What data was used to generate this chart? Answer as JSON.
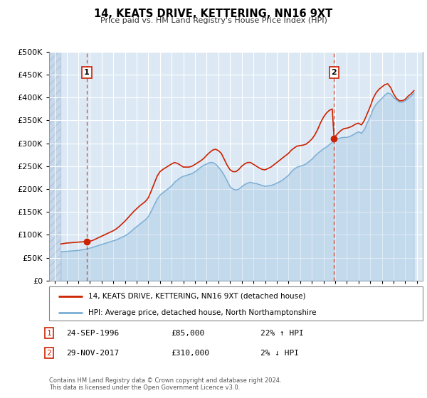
{
  "title": "14, KEATS DRIVE, KETTERING, NN16 9XT",
  "subtitle": "Price paid vs. HM Land Registry's House Price Index (HPI)",
  "legend_line1": "14, KEATS DRIVE, KETTERING, NN16 9XT (detached house)",
  "legend_line2": "HPI: Average price, detached house, North Northamptonshire",
  "annotation_text": "Contains HM Land Registry data © Crown copyright and database right 2024.\nThis data is licensed under the Open Government Licence v3.0.",
  "sale1_label": "1",
  "sale1_date": "24-SEP-1996",
  "sale1_price": "£85,000",
  "sale1_hpi": "22% ↑ HPI",
  "sale1_year": 1996.73,
  "sale1_value": 85000,
  "sale2_label": "2",
  "sale2_date": "29-NOV-2017",
  "sale2_price": "£310,000",
  "sale2_hpi": "2% ↓ HPI",
  "sale2_year": 2017.91,
  "sale2_value": 310000,
  "hpi_color": "#7aadd4",
  "sale_color": "#cc2200",
  "vline_color": "#dd3311",
  "plot_bg_color": "#dce9f5",
  "hatch_color": "#c8d8e8",
  "ylim": [
    0,
    500000
  ],
  "xlim_start": 1993.5,
  "xlim_end": 2025.5,
  "data_start": 1994.5,
  "yticks": [
    0,
    50000,
    100000,
    150000,
    200000,
    250000,
    300000,
    350000,
    400000,
    450000,
    500000
  ],
  "xticks": [
    1994,
    1995,
    1996,
    1997,
    1998,
    1999,
    2000,
    2001,
    2002,
    2003,
    2004,
    2005,
    2006,
    2007,
    2008,
    2009,
    2010,
    2011,
    2012,
    2013,
    2014,
    2015,
    2016,
    2017,
    2018,
    2019,
    2020,
    2021,
    2022,
    2023,
    2024,
    2025
  ],
  "hpi_data": [
    [
      1994.5,
      63000
    ],
    [
      1994.75,
      63500
    ],
    [
      1995.0,
      64000
    ],
    [
      1995.25,
      64500
    ],
    [
      1995.5,
      65000
    ],
    [
      1995.75,
      65500
    ],
    [
      1996.0,
      66000
    ],
    [
      1996.25,
      67000
    ],
    [
      1996.5,
      68000
    ],
    [
      1996.75,
      69500
    ],
    [
      1997.0,
      71000
    ],
    [
      1997.25,
      73000
    ],
    [
      1997.5,
      75000
    ],
    [
      1997.75,
      77000
    ],
    [
      1998.0,
      79000
    ],
    [
      1998.25,
      81000
    ],
    [
      1998.5,
      83000
    ],
    [
      1998.75,
      85000
    ],
    [
      1999.0,
      87000
    ],
    [
      1999.25,
      89000
    ],
    [
      1999.5,
      92000
    ],
    [
      1999.75,
      95000
    ],
    [
      2000.0,
      98000
    ],
    [
      2000.25,
      102000
    ],
    [
      2000.5,
      107000
    ],
    [
      2000.75,
      113000
    ],
    [
      2001.0,
      118000
    ],
    [
      2001.25,
      123000
    ],
    [
      2001.5,
      128000
    ],
    [
      2001.75,
      133000
    ],
    [
      2002.0,
      140000
    ],
    [
      2002.25,
      152000
    ],
    [
      2002.5,
      165000
    ],
    [
      2002.75,
      178000
    ],
    [
      2003.0,
      187000
    ],
    [
      2003.25,
      192000
    ],
    [
      2003.5,
      197000
    ],
    [
      2003.75,
      202000
    ],
    [
      2004.0,
      207000
    ],
    [
      2004.25,
      215000
    ],
    [
      2004.5,
      220000
    ],
    [
      2004.75,
      225000
    ],
    [
      2005.0,
      228000
    ],
    [
      2005.25,
      230000
    ],
    [
      2005.5,
      232000
    ],
    [
      2005.75,
      234000
    ],
    [
      2006.0,
      238000
    ],
    [
      2006.25,
      243000
    ],
    [
      2006.5,
      248000
    ],
    [
      2006.75,
      252000
    ],
    [
      2007.0,
      255000
    ],
    [
      2007.25,
      258000
    ],
    [
      2007.5,
      258000
    ],
    [
      2007.75,
      255000
    ],
    [
      2008.0,
      248000
    ],
    [
      2008.25,
      240000
    ],
    [
      2008.5,
      230000
    ],
    [
      2008.75,
      218000
    ],
    [
      2009.0,
      205000
    ],
    [
      2009.25,
      200000
    ],
    [
      2009.5,
      198000
    ],
    [
      2009.75,
      200000
    ],
    [
      2010.0,
      205000
    ],
    [
      2010.25,
      210000
    ],
    [
      2010.5,
      213000
    ],
    [
      2010.75,
      215000
    ],
    [
      2011.0,
      213000
    ],
    [
      2011.25,
      212000
    ],
    [
      2011.5,
      210000
    ],
    [
      2011.75,
      208000
    ],
    [
      2012.0,
      206000
    ],
    [
      2012.25,
      207000
    ],
    [
      2012.5,
      208000
    ],
    [
      2012.75,
      210000
    ],
    [
      2013.0,
      213000
    ],
    [
      2013.25,
      216000
    ],
    [
      2013.5,
      220000
    ],
    [
      2013.75,
      225000
    ],
    [
      2014.0,
      230000
    ],
    [
      2014.25,
      238000
    ],
    [
      2014.5,
      244000
    ],
    [
      2014.75,
      248000
    ],
    [
      2015.0,
      250000
    ],
    [
      2015.25,
      252000
    ],
    [
      2015.5,
      255000
    ],
    [
      2015.75,
      260000
    ],
    [
      2016.0,
      265000
    ],
    [
      2016.25,
      272000
    ],
    [
      2016.5,
      278000
    ],
    [
      2016.75,
      283000
    ],
    [
      2017.0,
      288000
    ],
    [
      2017.25,
      292000
    ],
    [
      2017.5,
      297000
    ],
    [
      2017.75,
      302000
    ],
    [
      2018.0,
      307000
    ],
    [
      2018.25,
      310000
    ],
    [
      2018.5,
      312000
    ],
    [
      2018.75,
      313000
    ],
    [
      2019.0,
      313000
    ],
    [
      2019.25,
      315000
    ],
    [
      2019.5,
      318000
    ],
    [
      2019.75,
      322000
    ],
    [
      2020.0,
      325000
    ],
    [
      2020.25,
      322000
    ],
    [
      2020.5,
      330000
    ],
    [
      2020.75,
      345000
    ],
    [
      2021.0,
      358000
    ],
    [
      2021.25,
      375000
    ],
    [
      2021.5,
      385000
    ],
    [
      2021.75,
      392000
    ],
    [
      2022.0,
      398000
    ],
    [
      2022.25,
      405000
    ],
    [
      2022.5,
      410000
    ],
    [
      2022.75,
      408000
    ],
    [
      2023.0,
      400000
    ],
    [
      2023.25,
      395000
    ],
    [
      2023.5,
      390000
    ],
    [
      2023.75,
      390000
    ],
    [
      2024.0,
      393000
    ],
    [
      2024.25,
      398000
    ],
    [
      2024.5,
      403000
    ],
    [
      2024.75,
      410000
    ]
  ],
  "price_data": [
    [
      1994.5,
      80000
    ],
    [
      1994.75,
      81000
    ],
    [
      1995.0,
      82000
    ],
    [
      1995.25,
      82500
    ],
    [
      1995.5,
      83000
    ],
    [
      1995.75,
      83500
    ],
    [
      1996.0,
      84000
    ],
    [
      1996.25,
      84500
    ],
    [
      1996.5,
      85000
    ],
    [
      1996.75,
      85000
    ],
    [
      1997.0,
      86000
    ],
    [
      1997.25,
      88000
    ],
    [
      1997.5,
      91000
    ],
    [
      1997.75,
      94000
    ],
    [
      1998.0,
      97000
    ],
    [
      1998.25,
      100000
    ],
    [
      1998.5,
      103000
    ],
    [
      1998.75,
      106000
    ],
    [
      1999.0,
      109000
    ],
    [
      1999.25,
      113000
    ],
    [
      1999.5,
      118000
    ],
    [
      1999.75,
      124000
    ],
    [
      2000.0,
      130000
    ],
    [
      2000.25,
      137000
    ],
    [
      2000.5,
      144000
    ],
    [
      2000.75,
      151000
    ],
    [
      2001.0,
      157000
    ],
    [
      2001.25,
      163000
    ],
    [
      2001.5,
      168000
    ],
    [
      2001.75,
      173000
    ],
    [
      2002.0,
      181000
    ],
    [
      2002.25,
      196000
    ],
    [
      2002.5,
      212000
    ],
    [
      2002.75,
      228000
    ],
    [
      2003.0,
      238000
    ],
    [
      2003.25,
      243000
    ],
    [
      2003.5,
      247000
    ],
    [
      2003.75,
      251000
    ],
    [
      2004.0,
      255000
    ],
    [
      2004.25,
      258000
    ],
    [
      2004.5,
      256000
    ],
    [
      2004.75,
      252000
    ],
    [
      2005.0,
      248000
    ],
    [
      2005.25,
      248000
    ],
    [
      2005.5,
      248000
    ],
    [
      2005.75,
      250000
    ],
    [
      2006.0,
      254000
    ],
    [
      2006.25,
      258000
    ],
    [
      2006.5,
      262000
    ],
    [
      2006.75,
      267000
    ],
    [
      2007.0,
      274000
    ],
    [
      2007.25,
      280000
    ],
    [
      2007.5,
      285000
    ],
    [
      2007.75,
      287000
    ],
    [
      2008.0,
      284000
    ],
    [
      2008.25,
      278000
    ],
    [
      2008.5,
      265000
    ],
    [
      2008.75,
      252000
    ],
    [
      2009.0,
      242000
    ],
    [
      2009.25,
      238000
    ],
    [
      2009.5,
      238000
    ],
    [
      2009.75,
      243000
    ],
    [
      2010.0,
      250000
    ],
    [
      2010.25,
      255000
    ],
    [
      2010.5,
      258000
    ],
    [
      2010.75,
      258000
    ],
    [
      2011.0,
      254000
    ],
    [
      2011.25,
      250000
    ],
    [
      2011.5,
      246000
    ],
    [
      2011.75,
      243000
    ],
    [
      2012.0,
      242000
    ],
    [
      2012.25,
      245000
    ],
    [
      2012.5,
      248000
    ],
    [
      2012.75,
      253000
    ],
    [
      2013.0,
      258000
    ],
    [
      2013.25,
      263000
    ],
    [
      2013.5,
      268000
    ],
    [
      2013.75,
      273000
    ],
    [
      2014.0,
      278000
    ],
    [
      2014.25,
      285000
    ],
    [
      2014.5,
      290000
    ],
    [
      2014.75,
      294000
    ],
    [
      2015.0,
      295000
    ],
    [
      2015.25,
      296000
    ],
    [
      2015.5,
      298000
    ],
    [
      2015.75,
      303000
    ],
    [
      2016.0,
      309000
    ],
    [
      2016.25,
      318000
    ],
    [
      2016.5,
      330000
    ],
    [
      2016.75,
      345000
    ],
    [
      2017.0,
      357000
    ],
    [
      2017.25,
      366000
    ],
    [
      2017.5,
      372000
    ],
    [
      2017.75,
      375000
    ],
    [
      2017.91,
      310000
    ],
    [
      2018.0,
      315000
    ],
    [
      2018.25,
      322000
    ],
    [
      2018.5,
      328000
    ],
    [
      2018.75,
      332000
    ],
    [
      2019.0,
      333000
    ],
    [
      2019.25,
      335000
    ],
    [
      2019.5,
      338000
    ],
    [
      2019.75,
      342000
    ],
    [
      2020.0,
      344000
    ],
    [
      2020.25,
      340000
    ],
    [
      2020.5,
      350000
    ],
    [
      2020.75,
      365000
    ],
    [
      2021.0,
      380000
    ],
    [
      2021.25,
      398000
    ],
    [
      2021.5,
      410000
    ],
    [
      2021.75,
      418000
    ],
    [
      2022.0,
      423000
    ],
    [
      2022.25,
      428000
    ],
    [
      2022.5,
      430000
    ],
    [
      2022.75,
      422000
    ],
    [
      2023.0,
      408000
    ],
    [
      2023.25,
      398000
    ],
    [
      2023.5,
      393000
    ],
    [
      2023.75,
      393000
    ],
    [
      2024.0,
      396000
    ],
    [
      2024.25,
      403000
    ],
    [
      2024.5,
      408000
    ],
    [
      2024.75,
      415000
    ]
  ]
}
